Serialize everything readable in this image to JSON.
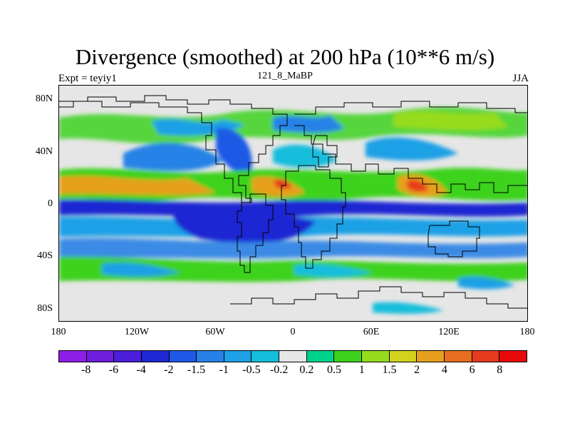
{
  "title": "Divergence (smoothed) at 200 hPa (10**6 m/s)",
  "subtitle_left": "Expt = teyiy1",
  "subtitle_center": "121_8_MaBP",
  "subtitle_right": "JJA",
  "axes": {
    "y_ticks": [
      "80N",
      "40N",
      "0",
      "40S",
      "80S"
    ],
    "x_ticks": [
      "180",
      "120W",
      "60W",
      "0",
      "60E",
      "120E",
      "180"
    ]
  },
  "colorbar": {
    "labels": [
      "-8",
      "-6",
      "-4",
      "-2",
      "-1.5",
      "-1",
      "-0.5",
      "-0.2",
      "0.2",
      "0.5",
      "1",
      "1.5",
      "2",
      "4",
      "6",
      "8"
    ],
    "colors": [
      "#8c1ee6",
      "#6e1edc",
      "#4b1edc",
      "#1e28d2",
      "#1e5ae6",
      "#2882e6",
      "#1ea0e6",
      "#14bedc",
      "#e6e6e6",
      "#00d28c",
      "#3cd21e",
      "#96dc1e",
      "#d2d21e",
      "#e6a01e",
      "#e66e1e",
      "#e63c1e",
      "#e60a0a"
    ]
  }
}
